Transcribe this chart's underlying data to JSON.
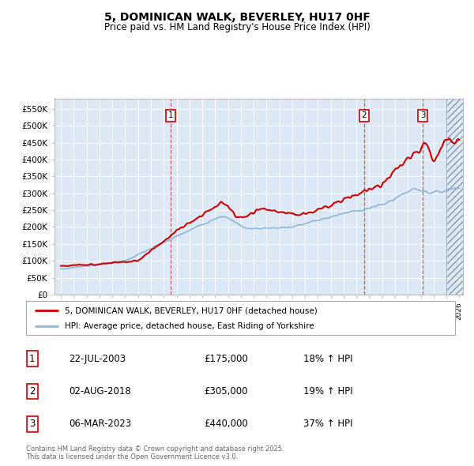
{
  "title_line1": "5, DOMINICAN WALK, BEVERLEY, HU17 0HF",
  "title_line2": "Price paid vs. HM Land Registry's House Price Index (HPI)",
  "plot_bg_color": "#dce8f5",
  "hpi_color": "#92b8d8",
  "price_color": "#cc0000",
  "ylim": [
    0,
    580000
  ],
  "yticks": [
    0,
    50000,
    100000,
    150000,
    200000,
    250000,
    300000,
    350000,
    400000,
    450000,
    500000,
    550000
  ],
  "ytick_labels": [
    "£0",
    "£50K",
    "£100K",
    "£150K",
    "£200K",
    "£250K",
    "£300K",
    "£350K",
    "£400K",
    "£450K",
    "£500K",
    "£550K"
  ],
  "legend_label1": "5, DOMINICAN WALK, BEVERLEY, HU17 0HF (detached house)",
  "legend_label2": "HPI: Average price, detached house, East Riding of Yorkshire",
  "footer": "Contains HM Land Registry data © Crown copyright and database right 2025.\nThis data is licensed under the Open Government Licence v3.0.",
  "table_rows": [
    [
      "1",
      "22-JUL-2003",
      "£175,000",
      "18% ↑ HPI"
    ],
    [
      "2",
      "02-AUG-2018",
      "£305,000",
      "19% ↑ HPI"
    ],
    [
      "3",
      "06-MAR-2023",
      "£440,000",
      "37% ↑ HPI"
    ]
  ],
  "sale_year_decimals": [
    2003.56,
    2018.59,
    2023.17
  ],
  "sale_labels": [
    "1",
    "2",
    "3"
  ]
}
